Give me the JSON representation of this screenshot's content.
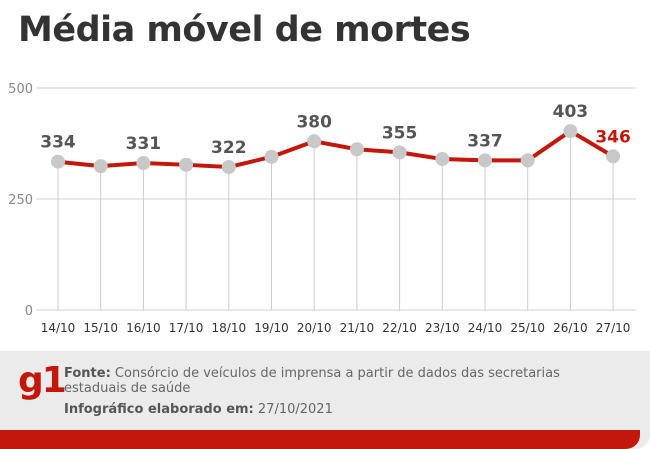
{
  "header": {
    "title": "Média móvel de mortes"
  },
  "chart_data": {
    "type": "line",
    "categories": [
      "14/10",
      "15/10",
      "16/10",
      "17/10",
      "18/10",
      "19/10",
      "20/10",
      "21/10",
      "22/10",
      "23/10",
      "24/10",
      "25/10",
      "26/10",
      "27/10"
    ],
    "values": [
      334,
      324,
      331,
      327,
      322,
      345,
      380,
      362,
      355,
      340,
      337,
      337,
      403,
      346
    ],
    "data_labels": [
      {
        "index": 0,
        "text": "334"
      },
      {
        "index": 2,
        "text": "331"
      },
      {
        "index": 4,
        "text": "322"
      },
      {
        "index": 6,
        "text": "380"
      },
      {
        "index": 8,
        "text": "355"
      },
      {
        "index": 10,
        "text": "337"
      },
      {
        "index": 12,
        "text": "403"
      },
      {
        "index": 13,
        "text": "346",
        "highlight": true
      }
    ],
    "yticks": [
      0,
      250,
      500
    ],
    "ylim": [
      0,
      500
    ],
    "grid": "horizontal",
    "colors": {
      "line": "#c4170c",
      "point": "#c8c8c8",
      "label": "#555555",
      "highlight": "#c4170c"
    }
  },
  "footer": {
    "logo": "g1",
    "source_label": "Fonte:",
    "source_text": "Consórcio de veículos de imprensa a partir de dados das secretarias estaduais de saúde",
    "credit_label": "Infográfico elaborado em:",
    "credit_date": "27/10/2021"
  },
  "colors": {
    "brand": "#c4170c",
    "footer_bg": "#ebebeb"
  }
}
